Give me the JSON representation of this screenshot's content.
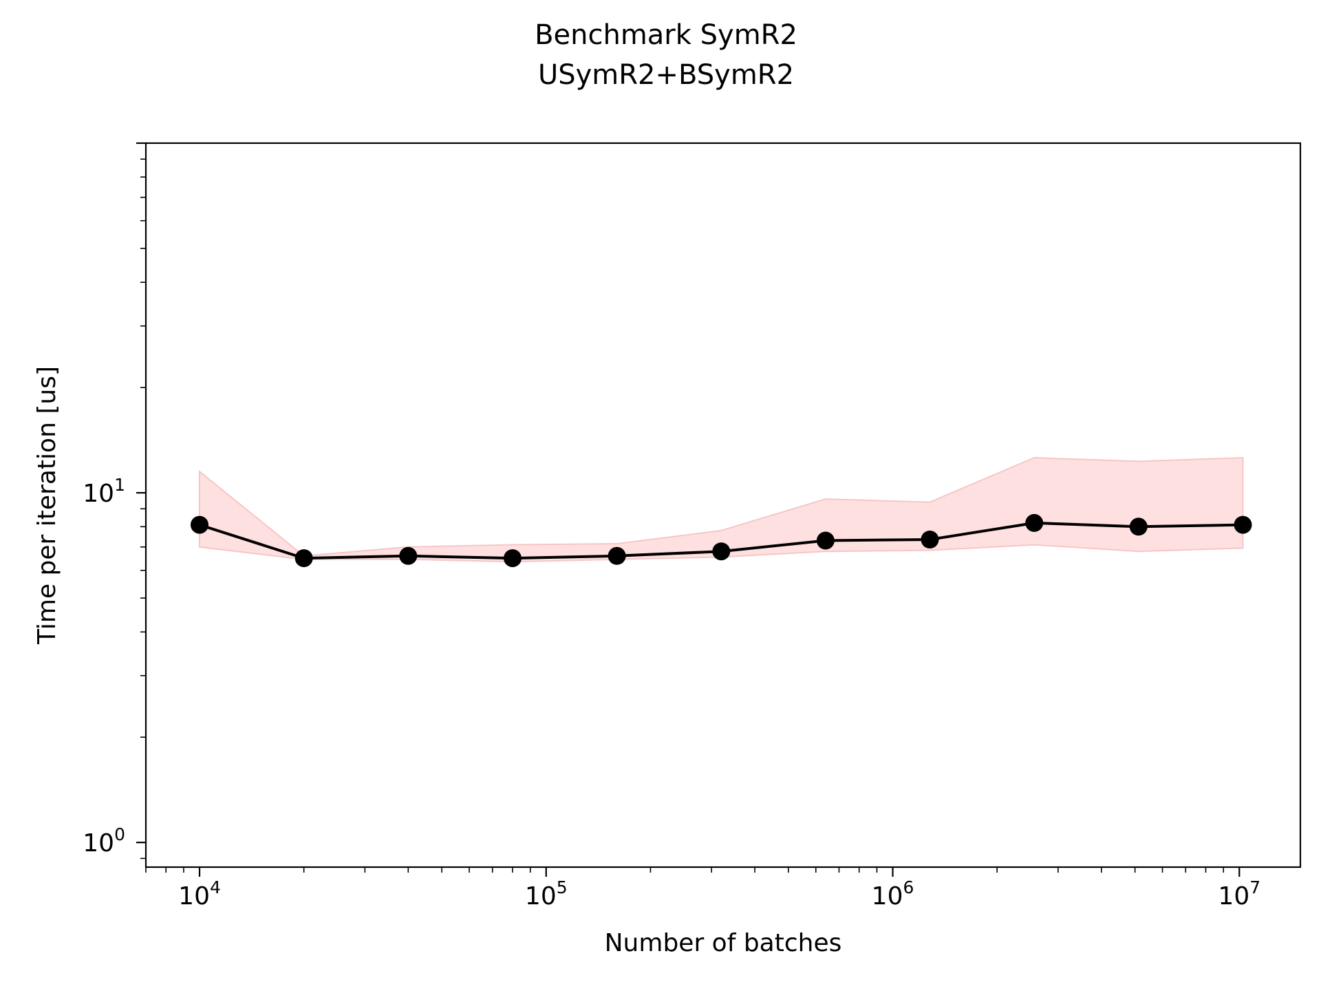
{
  "chart_data": {
    "type": "line",
    "title": "Benchmark SymR2",
    "subtitle": "USymR2+BSymR2",
    "xlabel": "Number of batches",
    "ylabel": "Time per iteration [us]",
    "xscale": "log",
    "yscale": "log",
    "xlim": [
      7000,
      15000000
    ],
    "ylim": [
      0.85,
      100
    ],
    "grid": false,
    "x_ticks": [
      {
        "value": 10000,
        "base": "10",
        "exp": "4"
      },
      {
        "value": 100000,
        "base": "10",
        "exp": "5"
      },
      {
        "value": 1000000,
        "base": "10",
        "exp": "6"
      },
      {
        "value": 10000000,
        "base": "10",
        "exp": "7"
      }
    ],
    "y_ticks": [
      {
        "value": 1,
        "base": "10",
        "exp": "0"
      },
      {
        "value": 10,
        "base": "10",
        "exp": "1"
      }
    ],
    "series": [
      {
        "x": [
          10000,
          20000,
          40000,
          80000,
          160000,
          320000,
          640000,
          1280000,
          2560000,
          5120000,
          10240000
        ],
        "y": [
          8.1,
          6.5,
          6.6,
          6.5,
          6.6,
          6.8,
          7.3,
          7.35,
          8.2,
          8.0,
          8.1
        ],
        "upper": [
          11.5,
          6.6,
          7.0,
          7.1,
          7.15,
          7.8,
          9.6,
          9.4,
          12.6,
          12.3,
          12.6
        ],
        "lower": [
          7.0,
          6.45,
          6.45,
          6.35,
          6.45,
          6.55,
          6.8,
          6.85,
          7.1,
          6.8,
          6.95
        ]
      }
    ],
    "colors": {
      "line": "#000000",
      "band_fill": "#ffe0e0",
      "band_edge": "#f6c6c6",
      "axes": "#000000"
    }
  }
}
